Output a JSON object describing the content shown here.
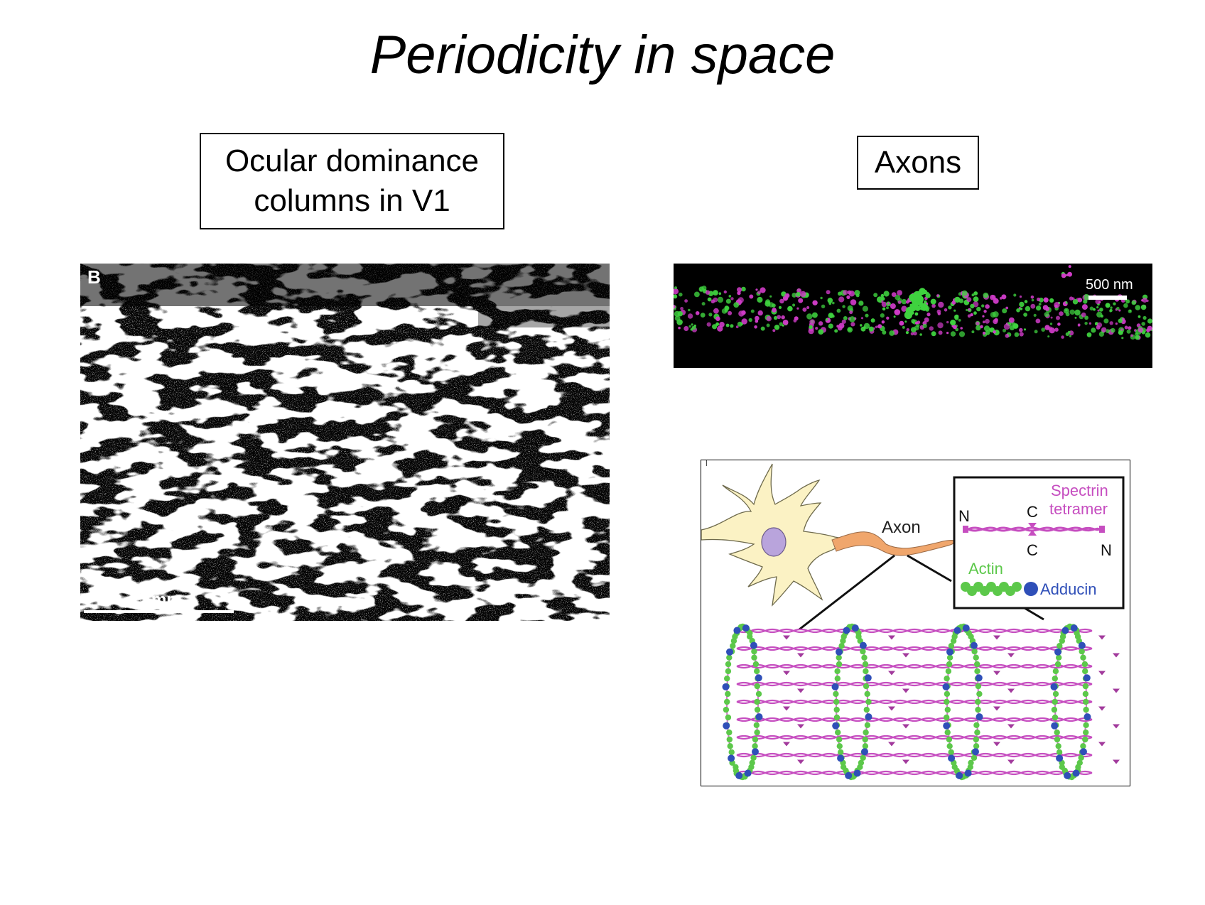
{
  "slide": {
    "title": "Periodicity in space"
  },
  "left": {
    "label_line1": "Ocular dominance",
    "label_line2": "columns in V1",
    "panel_letter": "B",
    "scale_bar_label": "5 mm"
  },
  "right": {
    "label": "Axons",
    "micrograph": {
      "scale_bar_label": "500 nm",
      "colors": {
        "actin": "#3fd23f",
        "spectrin": "#d03cc8",
        "background": "#000000"
      }
    },
    "diagram": {
      "axon_label": "Axon",
      "legend": {
        "spectrin_line1": "Spectrin",
        "spectrin_line2": "tetramer",
        "n_left": "N",
        "c_top": "C",
        "c_bottom": "C",
        "n_right": "N",
        "actin": "Actin",
        "adducin": "Adducin"
      },
      "colors": {
        "spectrin": "#c64ec0",
        "actin": "#5cc84a",
        "adducin": "#2f4fb8",
        "neuron_body": "#fbf2c4",
        "nucleus": "#b9a4dc",
        "axon": "#f0a66c"
      }
    }
  }
}
